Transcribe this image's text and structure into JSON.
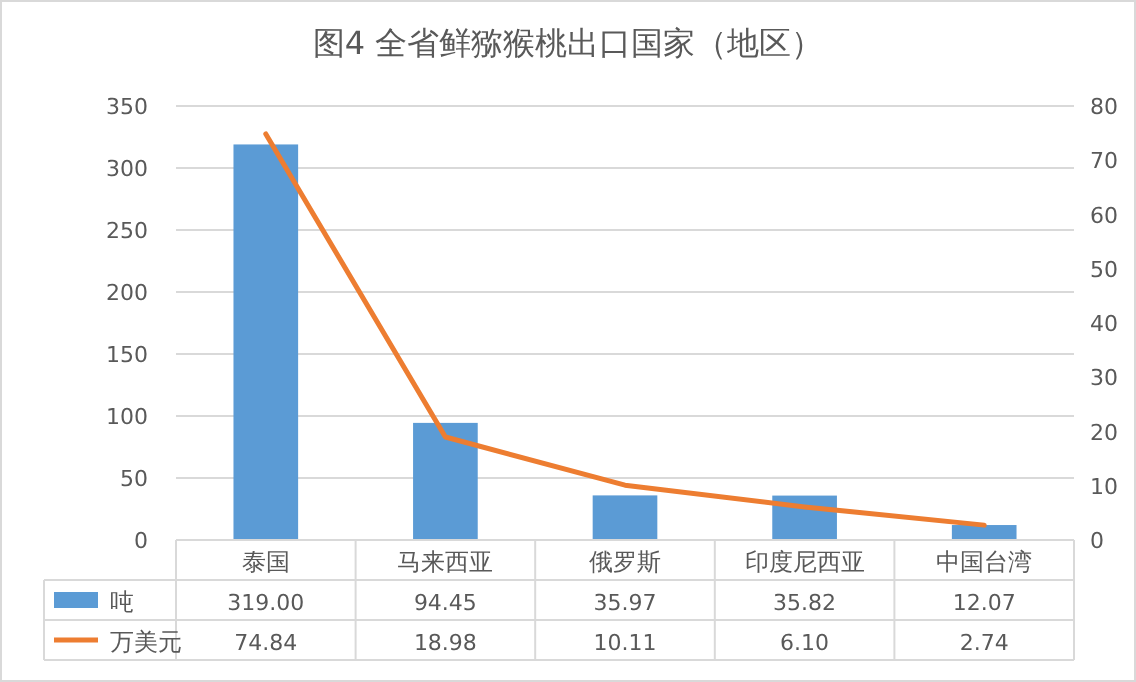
{
  "chart_data": {
    "type": "bar",
    "title": "图4  全省鲜猕猴桃出口国家（地区）",
    "categories": [
      "泰国",
      "马来西亚",
      "俄罗斯",
      "印度尼西亚",
      "中国台湾"
    ],
    "series": [
      {
        "name": "吨",
        "color": "#5b9bd5",
        "values": [
          319.0,
          94.45,
          35.97,
          35.82,
          12.07
        ],
        "value_labels": [
          "319.00",
          "94.45",
          "35.97",
          "35.82",
          "12.07"
        ]
      },
      {
        "name": "万美元",
        "type": "line",
        "axis": "y2",
        "color": "#ed7d31",
        "values": [
          74.84,
          18.98,
          10.11,
          6.1,
          2.74
        ],
        "value_labels": [
          "74.84",
          "18.98",
          "10.11",
          "6.10",
          "2.74"
        ]
      }
    ],
    "ylim": [
      0,
      350
    ],
    "yticks": [
      0,
      50,
      100,
      150,
      200,
      250,
      300,
      350
    ],
    "y2lim": [
      0,
      80
    ],
    "y2ticks": [
      0,
      10,
      20,
      30,
      40,
      50,
      60,
      70,
      80
    ],
    "grid": "y",
    "legend": "bottom"
  }
}
